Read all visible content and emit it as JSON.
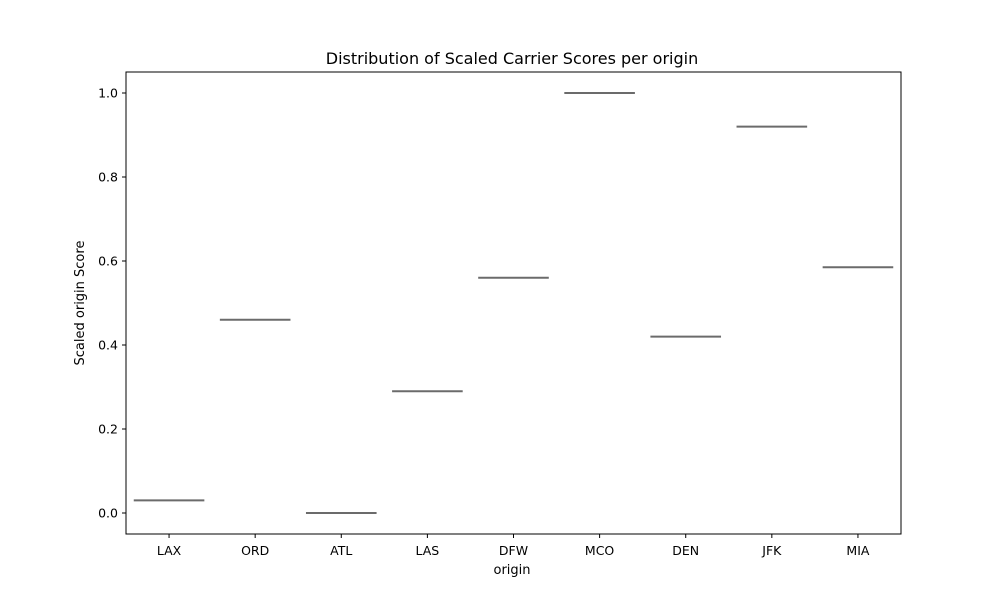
{
  "chart_data": {
    "type": "box",
    "title": "Distribution of Scaled Carrier Scores per origin",
    "xlabel": "origin",
    "ylabel": "Scaled origin Score",
    "categories": [
      "LAX",
      "ORD",
      "ATL",
      "LAS",
      "DFW",
      "MCO",
      "DEN",
      "JFK",
      "MIA"
    ],
    "values": [
      0.03,
      0.46,
      0.0,
      0.29,
      0.56,
      1.0,
      0.42,
      0.92,
      0.585
    ],
    "ylim": [
      -0.05,
      1.05
    ],
    "yticks": [
      0.0,
      0.2,
      0.4,
      0.6,
      0.8,
      1.0
    ],
    "ytick_labels": [
      "0.0",
      "0.2",
      "0.4",
      "0.6",
      "0.8",
      "1.0"
    ],
    "grid": false,
    "legend": "none",
    "colors": {
      "median_line": "#6b6b6b",
      "axes": "#000000"
    }
  }
}
